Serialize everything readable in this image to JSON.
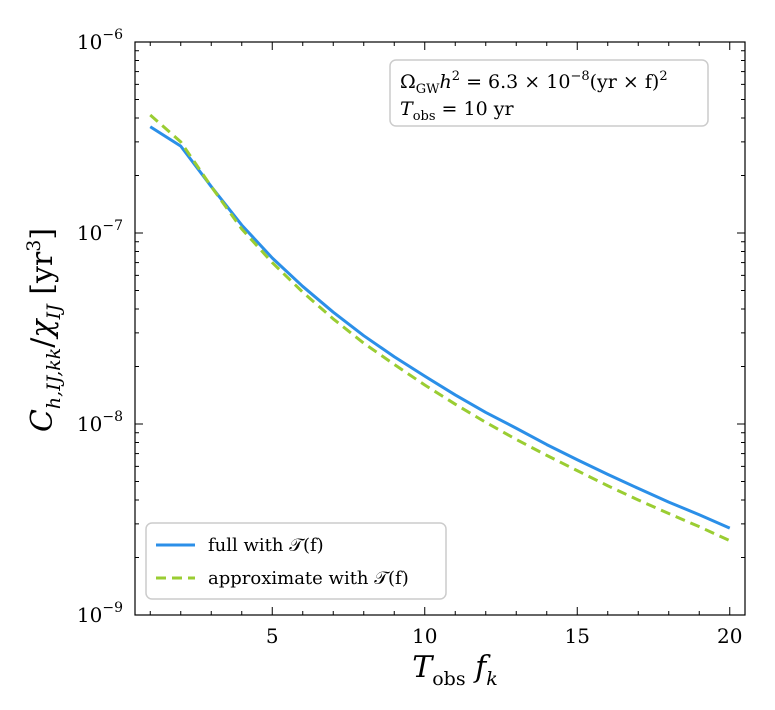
{
  "chart_data": {
    "type": "line",
    "title": "",
    "xlabel": "T_obs f_k",
    "ylabel": "C_{h,IJ,kk}/χ_IJ [yr^3]",
    "xscale": "linear",
    "yscale": "log",
    "xlim": [
      0.5,
      20.5
    ],
    "ylim": [
      1e-09,
      1e-06
    ],
    "xticks": [
      5,
      10,
      15,
      20
    ],
    "xtick_labels": [
      "5",
      "10",
      "15",
      "20"
    ],
    "yticks": [
      1e-09,
      1e-08,
      1e-07,
      1e-06
    ],
    "ytick_labels": [
      {
        "base": "10",
        "exp": "−9"
      },
      {
        "base": "10",
        "exp": "−8"
      },
      {
        "base": "10",
        "exp": "−7"
      },
      {
        "base": "10",
        "exp": "−6"
      }
    ],
    "series": [
      {
        "name": "full with 𝒯(f)",
        "color": "#2b8fe8",
        "style": "solid",
        "x": [
          1,
          2,
          3,
          4,
          5,
          6,
          7,
          8,
          9,
          10,
          11,
          12,
          13,
          14,
          15,
          16,
          17,
          18,
          19,
          20
        ],
        "y": [
          3.6e-07,
          2.85e-07,
          1.75e-07,
          1.1e-07,
          7.4e-08,
          5.25e-08,
          3.85e-08,
          2.9e-08,
          2.25e-08,
          1.78e-08,
          1.42e-08,
          1.15e-08,
          9.5e-09,
          7.8e-09,
          6.5e-09,
          5.45e-09,
          4.6e-09,
          3.9e-09,
          3.35e-09,
          2.85e-09
        ]
      },
      {
        "name": "approximate with 𝒯(f)",
        "color": "#9acd32",
        "style": "dashed",
        "x": [
          1,
          2,
          3,
          4,
          5,
          6,
          7,
          8,
          9,
          10,
          11,
          12,
          13,
          14,
          15,
          16,
          17,
          18,
          19,
          20
        ],
        "y": [
          4.15e-07,
          3e-07,
          1.75e-07,
          1.05e-07,
          7e-08,
          4.9e-08,
          3.55e-08,
          2.65e-08,
          2.05e-08,
          1.6e-08,
          1.27e-08,
          1.02e-08,
          8.3e-09,
          6.85e-09,
          5.7e-09,
          4.75e-09,
          4e-09,
          3.4e-09,
          2.9e-09,
          2.45e-09
        ]
      }
    ],
    "legend_position": "bottom-left",
    "annotation_position": "top-right",
    "annotation": {
      "line1": {
        "omega": "Ω",
        "omega_sub": "GW",
        "h": "h",
        "h_exp": "2",
        "eq": " = 6.3 × 10",
        "pow": "−8",
        "rest": "(yr × f)",
        "sq": "2"
      },
      "line2": {
        "T": "T",
        "T_sub": "obs",
        "rest": " = 10 yr"
      }
    }
  }
}
